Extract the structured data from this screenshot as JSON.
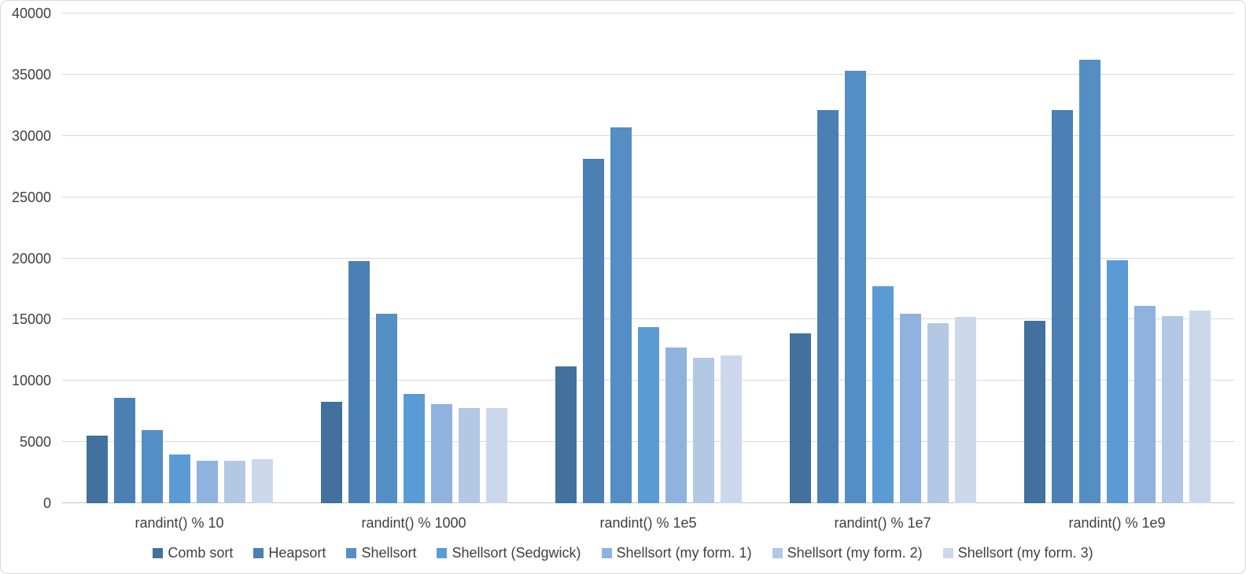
{
  "chart_data": {
    "type": "bar",
    "title": "",
    "xlabel": "",
    "ylabel": "",
    "categories": [
      "randint() % 10",
      "randint() % 1000",
      "randint() % 1e5",
      "randint() % 1e7",
      "randint() % 1e9"
    ],
    "series": [
      {
        "name": "Comb sort",
        "color": "#41719C",
        "values": [
          5500,
          8300,
          11200,
          13900,
          14900
        ]
      },
      {
        "name": "Heapsort",
        "color": "#4B80B4",
        "values": [
          8600,
          19800,
          28100,
          32100,
          32100
        ]
      },
      {
        "name": "Shellsort",
        "color": "#548EC4",
        "values": [
          6000,
          15500,
          30700,
          35300,
          36200
        ]
      },
      {
        "name": "Shellsort (Sedgwick)",
        "color": "#5B9BD5",
        "values": [
          4000,
          8900,
          14400,
          17700,
          19850
        ]
      },
      {
        "name": "Shellsort (my form. 1)",
        "color": "#8FB2DE",
        "values": [
          3500,
          8100,
          12700,
          15500,
          16100
        ]
      },
      {
        "name": "Shellsort (my form. 2)",
        "color": "#B3C8E4",
        "values": [
          3500,
          7750,
          11900,
          14700,
          15300
        ]
      },
      {
        "name": "Shellsort (my form. 3)",
        "color": "#CBD8EC",
        "values": [
          3600,
          7750,
          12100,
          15200,
          15700
        ]
      }
    ],
    "ylim": [
      0,
      40000
    ],
    "ytick_step": 5000,
    "ytick_labels": [
      "0",
      "5000",
      "10000",
      "15000",
      "20000",
      "25000",
      "30000",
      "35000",
      "40000"
    ],
    "grid": true,
    "legend_position": "bottom",
    "colors": {
      "gridline": "#d9d9d9",
      "axis_line": "#c3c3c3",
      "axis_text": "#404040",
      "background": "#ffffff"
    }
  }
}
